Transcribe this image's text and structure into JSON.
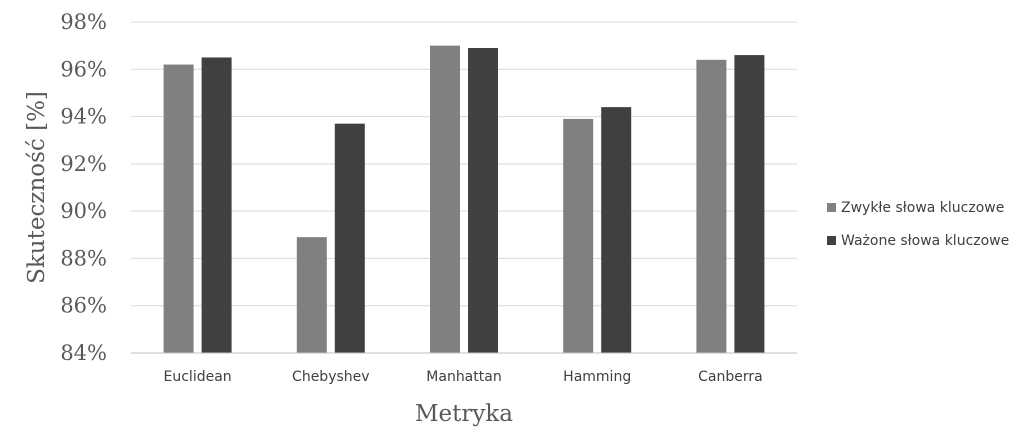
{
  "chart_data": {
    "type": "bar",
    "title": "",
    "xlabel": "Metryka",
    "ylabel": "Skuteczność [%]",
    "categories": [
      "Euclidean",
      "Chebyshev",
      "Manhattan",
      "Hamming",
      "Canberra"
    ],
    "series": [
      {
        "name": "Zwykłe słowa kluczowe",
        "color": "#808080",
        "values": [
          96.2,
          88.9,
          97.0,
          93.9,
          96.4
        ]
      },
      {
        "name": "Ważone słowa kluczowe",
        "color": "#404040",
        "values": [
          96.5,
          93.7,
          96.9,
          94.4,
          96.6
        ]
      }
    ],
    "ylim": [
      84,
      98
    ],
    "yticks": [
      84,
      86,
      88,
      90,
      92,
      94,
      96,
      98
    ],
    "ytick_labels": [
      "84%",
      "86%",
      "88%",
      "90%",
      "92%",
      "94%",
      "96%",
      "98%"
    ],
    "grid": true,
    "legend_position": "right"
  }
}
